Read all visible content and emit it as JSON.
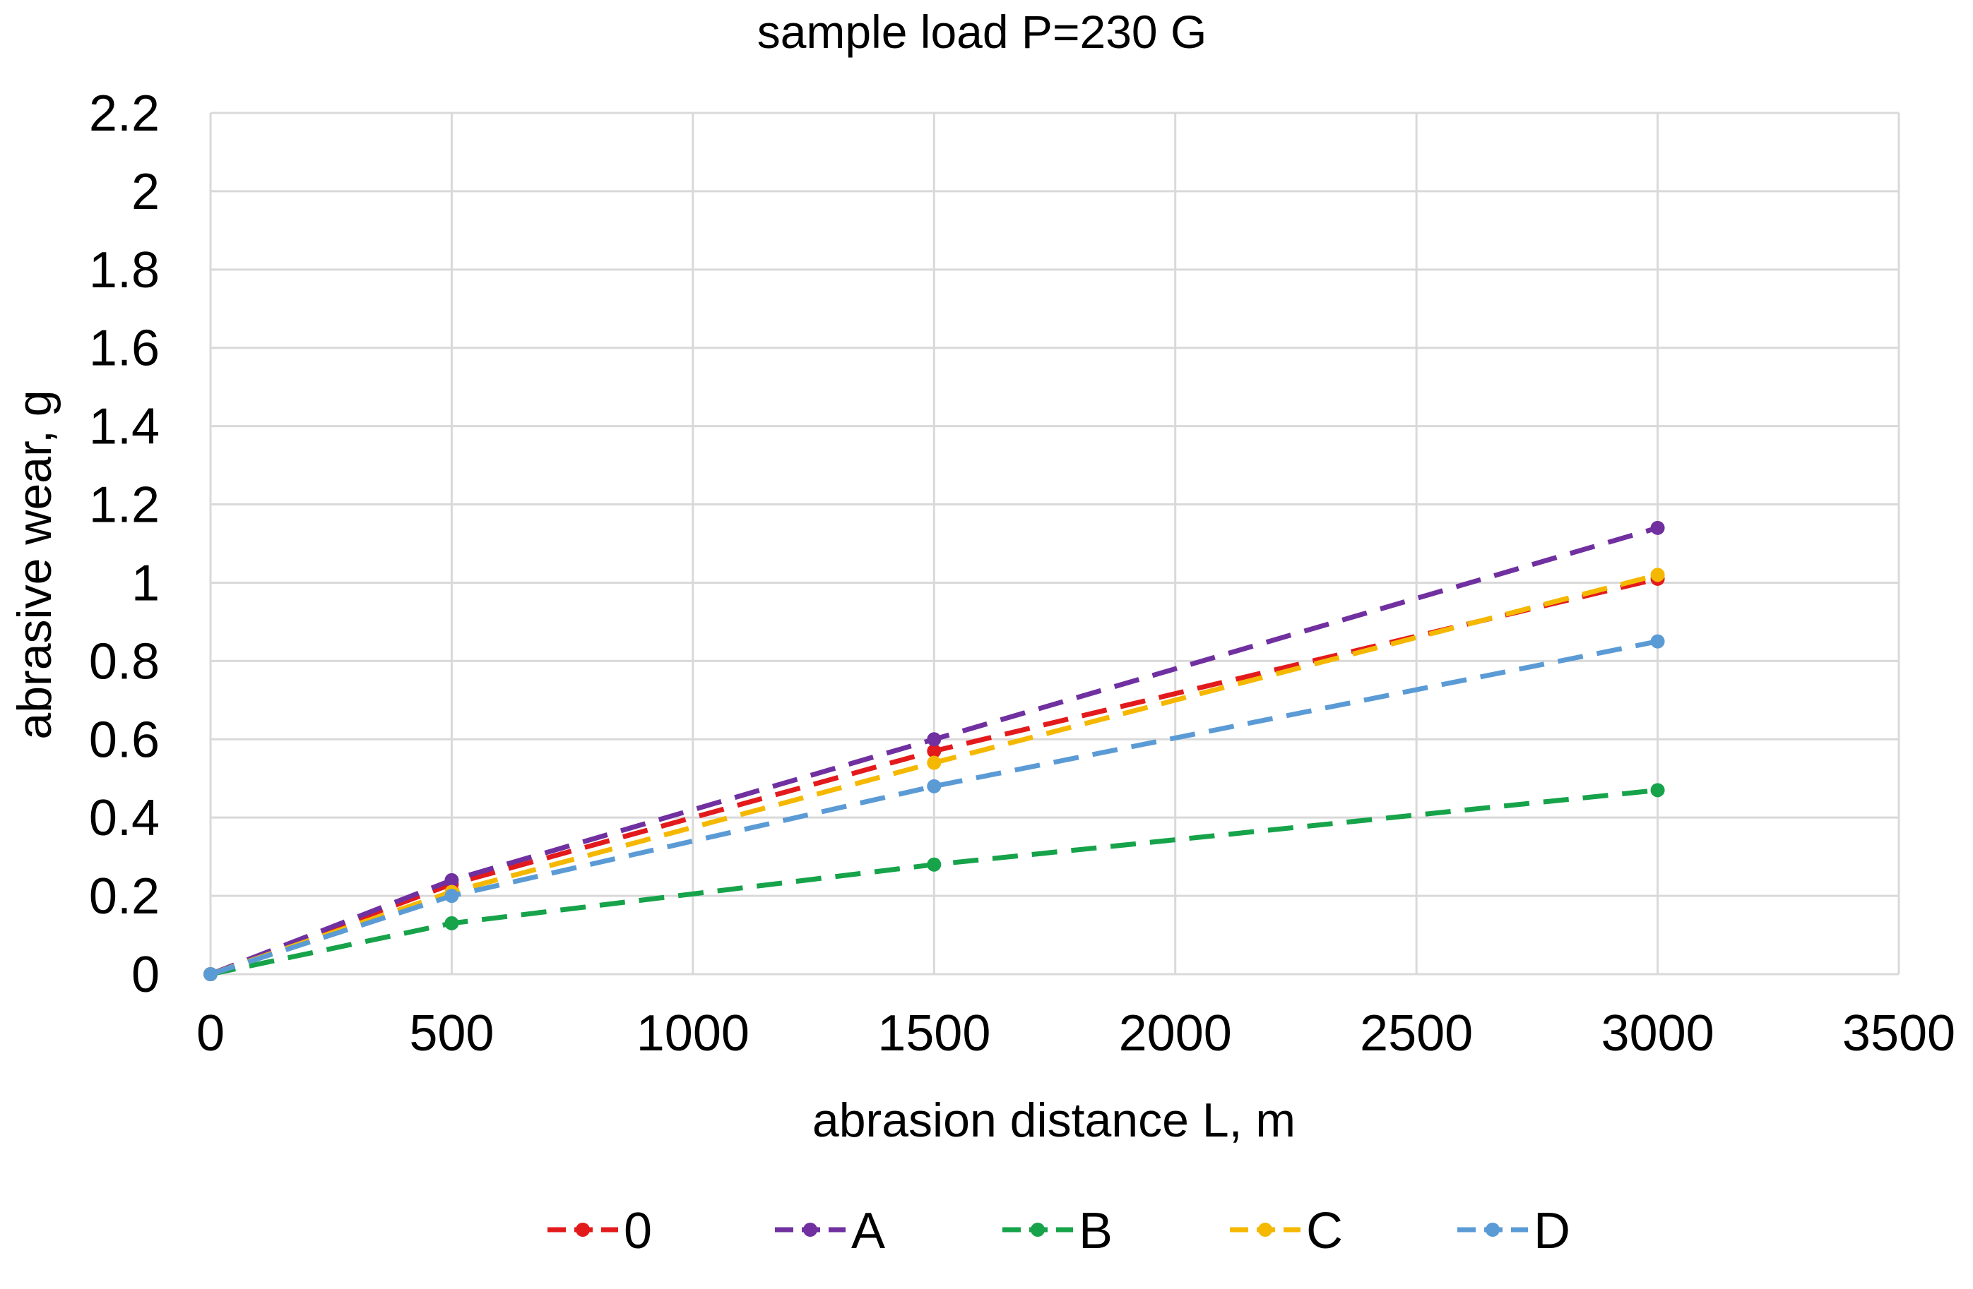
{
  "chart_data": {
    "type": "line",
    "title": "sample load P=230 G",
    "xlabel": "abrasion distance L, m",
    "ylabel": "abrasive wear, g",
    "xlim": [
      0,
      3500
    ],
    "ylim": [
      0,
      2.2
    ],
    "x_ticks": [
      "0",
      "500",
      "1000",
      "1500",
      "2000",
      "2500",
      "3000",
      "3500"
    ],
    "y_ticks": [
      "0",
      "0.2",
      "0.4",
      "0.6",
      "0.8",
      "1",
      "1.2",
      "1.4",
      "1.6",
      "1.8",
      "2",
      "2.2"
    ],
    "grid": true,
    "legend_position": "bottom",
    "x": [
      0,
      500,
      1500,
      3000
    ],
    "series": [
      {
        "name": "0",
        "color": "#e31a1c",
        "values": [
          0,
          0.23,
          0.57,
          1.01
        ]
      },
      {
        "name": "A",
        "color": "#7030a0",
        "values": [
          0,
          0.24,
          0.6,
          1.14
        ]
      },
      {
        "name": "B",
        "color": "#16a34a",
        "values": [
          0,
          0.13,
          0.28,
          0.47
        ]
      },
      {
        "name": "C",
        "color": "#f5b800",
        "values": [
          0,
          0.21,
          0.54,
          1.02
        ]
      },
      {
        "name": "D",
        "color": "#5b9bd5",
        "values": [
          0,
          0.2,
          0.48,
          0.85
        ]
      }
    ]
  }
}
